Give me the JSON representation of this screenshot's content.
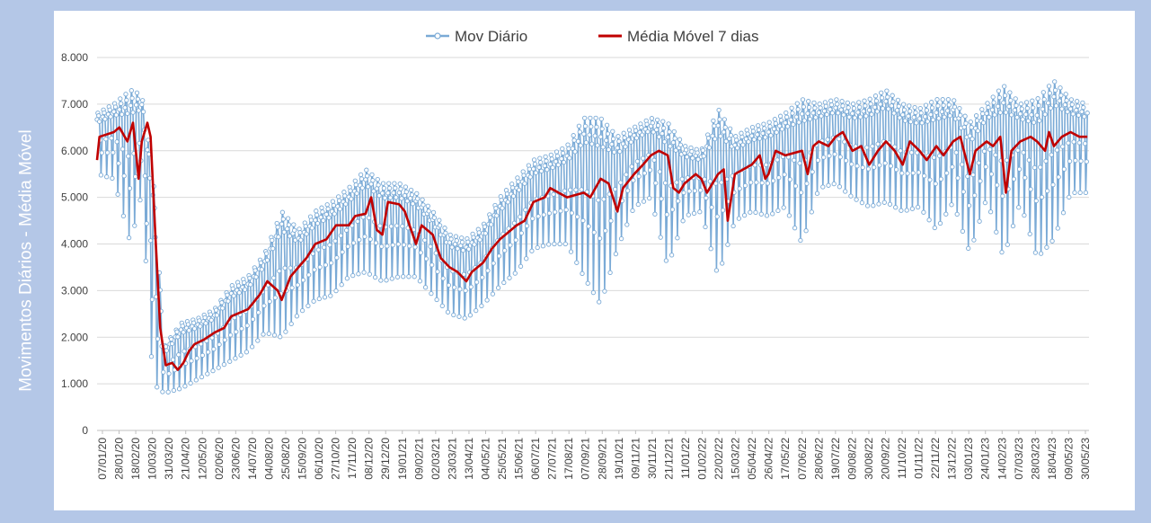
{
  "chart_data": {
    "type": "line",
    "xlabel": "",
    "ylabel": "Movimentos Diários - Média Móvel",
    "ylim": [
      0,
      8000
    ],
    "y_ticks": [
      "0",
      "1.000",
      "2.000",
      "3.000",
      "4.000",
      "5.000",
      "6.000",
      "7.000",
      "8.000"
    ],
    "y_tick_values": [
      0,
      1000,
      2000,
      3000,
      4000,
      5000,
      6000,
      7000,
      8000
    ],
    "x_range": [
      "2020-01-07",
      "2023-06-01"
    ],
    "x_ticks": [
      "07/01/20",
      "28/01/20",
      "18/02/20",
      "10/03/20",
      "31/03/20",
      "21/04/20",
      "12/05/20",
      "02/06/20",
      "23/06/20",
      "14/07/20",
      "04/08/20",
      "25/08/20",
      "15/09/20",
      "06/10/20",
      "27/10/20",
      "17/11/20",
      "08/12/20",
      "29/12/20",
      "19/01/21",
      "09/02/21",
      "02/03/21",
      "23/03/21",
      "13/04/21",
      "04/05/21",
      "25/05/21",
      "15/06/21",
      "06/07/21",
      "27/07/21",
      "17/08/21",
      "07/09/21",
      "28/09/21",
      "19/10/21",
      "09/11/21",
      "30/11/21",
      "21/12/21",
      "11/01/22",
      "01/02/22",
      "22/02/22",
      "15/03/22",
      "05/04/22",
      "26/04/22",
      "17/05/22",
      "07/06/22",
      "28/06/22",
      "19/07/22",
      "09/08/22",
      "30/08/22",
      "20/09/22",
      "11/10/22",
      "01/11/22",
      "22/11/22",
      "13/12/22",
      "03/01/23",
      "24/01/23",
      "14/02/23",
      "07/03/23",
      "28/03/23",
      "18/04/23",
      "09/05/23",
      "30/05/23"
    ],
    "legend_position": "top",
    "grid": true,
    "series": [
      {
        "name": "Mov Diário",
        "color": "#7aaad6",
        "style": "line-with-markers",
        "daily_ranges": [
          {
            "x": "2020-01-07",
            "low": 5500,
            "high": 6800,
            "mean": 6300
          },
          {
            "x": "2020-01-28",
            "low": 5400,
            "high": 7000,
            "mean": 6400
          },
          {
            "x": "2020-02-18",
            "low": 4000,
            "high": 7300,
            "mean": 6300
          },
          {
            "x": "2020-03-03",
            "low": 5100,
            "high": 7200,
            "mean": 6500
          },
          {
            "x": "2020-03-17",
            "low": 1000,
            "high": 5500,
            "mean": 2800
          },
          {
            "x": "2020-03-31",
            "low": 800,
            "high": 1800,
            "mean": 1400
          },
          {
            "x": "2020-04-21",
            "low": 900,
            "high": 2300,
            "mean": 1700
          },
          {
            "x": "2020-05-12",
            "low": 1100,
            "high": 2400,
            "mean": 1900
          },
          {
            "x": "2020-06-02",
            "low": 1300,
            "high": 2600,
            "mean": 2100
          },
          {
            "x": "2020-06-23",
            "low": 1500,
            "high": 3100,
            "mean": 2400
          },
          {
            "x": "2020-07-14",
            "low": 1700,
            "high": 3300,
            "mean": 2600
          },
          {
            "x": "2020-08-04",
            "low": 2100,
            "high": 3800,
            "mean": 3100
          },
          {
            "x": "2020-08-25",
            "low": 2000,
            "high": 4700,
            "mean": 3200
          },
          {
            "x": "2020-09-15",
            "low": 2500,
            "high": 4300,
            "mean": 3600
          },
          {
            "x": "2020-10-06",
            "low": 2800,
            "high": 4700,
            "mean": 4000
          },
          {
            "x": "2020-10-27",
            "low": 2900,
            "high": 4900,
            "mean": 4200
          },
          {
            "x": "2020-11-17",
            "low": 3300,
            "high": 5200,
            "mean": 4500
          },
          {
            "x": "2020-12-08",
            "low": 3400,
            "high": 5600,
            "mean": 4700
          },
          {
            "x": "2020-12-29",
            "low": 3200,
            "high": 5300,
            "mean": 4600
          },
          {
            "x": "2021-01-19",
            "low": 3300,
            "high": 5300,
            "mean": 4600
          },
          {
            "x": "2021-02-09",
            "low": 3300,
            "high": 5100,
            "mean": 4400
          },
          {
            "x": "2021-03-02",
            "low": 2900,
            "high": 4700,
            "mean": 4000
          },
          {
            "x": "2021-03-23",
            "low": 2500,
            "high": 4200,
            "mean": 3500
          },
          {
            "x": "2021-04-13",
            "low": 2400,
            "high": 4100,
            "mean": 3300
          },
          {
            "x": "2021-05-04",
            "low": 2700,
            "high": 4400,
            "mean": 3600
          },
          {
            "x": "2021-05-25",
            "low": 3100,
            "high": 5000,
            "mean": 4100
          },
          {
            "x": "2021-06-15",
            "low": 3400,
            "high": 5400,
            "mean": 4500
          },
          {
            "x": "2021-07-06",
            "low": 3900,
            "high": 5800,
            "mean": 4900
          },
          {
            "x": "2021-07-27",
            "low": 4000,
            "high": 5900,
            "mean": 5000
          },
          {
            "x": "2021-08-17",
            "low": 4000,
            "high": 6100,
            "mean": 5000
          },
          {
            "x": "2021-09-07",
            "low": 3300,
            "high": 6700,
            "mean": 5100
          },
          {
            "x": "2021-09-28",
            "low": 2700,
            "high": 6700,
            "mean": 5300
          },
          {
            "x": "2021-10-19",
            "low": 3900,
            "high": 6300,
            "mean": 5200
          },
          {
            "x": "2021-11-09",
            "low": 4800,
            "high": 6500,
            "mean": 5500
          },
          {
            "x": "2021-11-30",
            "low": 5000,
            "high": 6700,
            "mean": 5900
          },
          {
            "x": "2021-12-21",
            "low": 3500,
            "high": 6600,
            "mean": 5600
          },
          {
            "x": "2022-01-11",
            "low": 4600,
            "high": 6100,
            "mean": 5300
          },
          {
            "x": "2022-02-01",
            "low": 4700,
            "high": 6000,
            "mean": 5400
          },
          {
            "x": "2022-02-22",
            "low": 3300,
            "high": 6900,
            "mean": 5300
          },
          {
            "x": "2022-03-15",
            "low": 4500,
            "high": 6300,
            "mean": 5500
          },
          {
            "x": "2022-04-05",
            "low": 4700,
            "high": 6500,
            "mean": 5700
          },
          {
            "x": "2022-04-26",
            "low": 4600,
            "high": 6600,
            "mean": 5800
          },
          {
            "x": "2022-05-17",
            "low": 4800,
            "high": 6800,
            "mean": 5900
          },
          {
            "x": "2022-06-07",
            "low": 4000,
            "high": 7100,
            "mean": 5800
          },
          {
            "x": "2022-06-28",
            "low": 5200,
            "high": 7000,
            "mean": 6200
          },
          {
            "x": "2022-07-19",
            "low": 5300,
            "high": 7100,
            "mean": 6300
          },
          {
            "x": "2022-08-09",
            "low": 5000,
            "high": 7000,
            "mean": 6100
          },
          {
            "x": "2022-08-30",
            "low": 4800,
            "high": 7100,
            "mean": 6000
          },
          {
            "x": "2022-09-20",
            "low": 4900,
            "high": 7300,
            "mean": 6100
          },
          {
            "x": "2022-10-11",
            "low": 4700,
            "high": 7000,
            "mean": 6000
          },
          {
            "x": "2022-11-01",
            "low": 4800,
            "high": 6900,
            "mean": 6000
          },
          {
            "x": "2022-11-22",
            "low": 4300,
            "high": 7100,
            "mean": 6000
          },
          {
            "x": "2022-12-13",
            "low": 4900,
            "high": 7100,
            "mean": 6100
          },
          {
            "x": "2023-01-03",
            "low": 3800,
            "high": 6600,
            "mean": 5700
          },
          {
            "x": "2023-01-24",
            "low": 5000,
            "high": 7000,
            "mean": 6100
          },
          {
            "x": "2023-02-14",
            "low": 3700,
            "high": 7400,
            "mean": 6000
          },
          {
            "x": "2023-03-07",
            "low": 4900,
            "high": 7000,
            "mean": 6100
          },
          {
            "x": "2023-03-28",
            "low": 3700,
            "high": 7100,
            "mean": 6200
          },
          {
            "x": "2023-04-18",
            "low": 4100,
            "high": 7500,
            "mean": 6300
          },
          {
            "x": "2023-05-09",
            "low": 5100,
            "high": 7100,
            "mean": 6300
          },
          {
            "x": "2023-05-30",
            "low": 5100,
            "high": 7000,
            "mean": 6200
          }
        ]
      },
      {
        "name": "Média Móvel 7 dias",
        "color": "#c00000",
        "style": "line",
        "points": [
          {
            "x": "2020-01-07",
            "y": 5800
          },
          {
            "x": "2020-01-10",
            "y": 6300
          },
          {
            "x": "2020-01-28",
            "y": 6400
          },
          {
            "x": "2020-02-04",
            "y": 6500
          },
          {
            "x": "2020-02-14",
            "y": 6200
          },
          {
            "x": "2020-02-21",
            "y": 6600
          },
          {
            "x": "2020-02-28",
            "y": 5400
          },
          {
            "x": "2020-03-03",
            "y": 6200
          },
          {
            "x": "2020-03-10",
            "y": 6600
          },
          {
            "x": "2020-03-14",
            "y": 6300
          },
          {
            "x": "2020-03-20",
            "y": 4200
          },
          {
            "x": "2020-03-26",
            "y": 2200
          },
          {
            "x": "2020-04-02",
            "y": 1400
          },
          {
            "x": "2020-04-10",
            "y": 1450
          },
          {
            "x": "2020-04-17",
            "y": 1300
          },
          {
            "x": "2020-04-24",
            "y": 1450
          },
          {
            "x": "2020-05-01",
            "y": 1700
          },
          {
            "x": "2020-05-08",
            "y": 1850
          },
          {
            "x": "2020-05-20",
            "y": 1950
          },
          {
            "x": "2020-06-02",
            "y": 2100
          },
          {
            "x": "2020-06-14",
            "y": 2200
          },
          {
            "x": "2020-06-23",
            "y": 2450
          },
          {
            "x": "2020-07-14",
            "y": 2600
          },
          {
            "x": "2020-07-28",
            "y": 2900
          },
          {
            "x": "2020-08-07",
            "y": 3200
          },
          {
            "x": "2020-08-20",
            "y": 3000
          },
          {
            "x": "2020-08-25",
            "y": 2800
          },
          {
            "x": "2020-09-05",
            "y": 3300
          },
          {
            "x": "2020-09-15",
            "y": 3500
          },
          {
            "x": "2020-09-25",
            "y": 3700
          },
          {
            "x": "2020-10-06",
            "y": 4000
          },
          {
            "x": "2020-10-20",
            "y": 4100
          },
          {
            "x": "2020-11-01",
            "y": 4400
          },
          {
            "x": "2020-11-17",
            "y": 4400
          },
          {
            "x": "2020-11-25",
            "y": 4600
          },
          {
            "x": "2020-12-08",
            "y": 4650
          },
          {
            "x": "2020-12-15",
            "y": 5000
          },
          {
            "x": "2020-12-22",
            "y": 4300
          },
          {
            "x": "2020-12-29",
            "y": 4200
          },
          {
            "x": "2021-01-05",
            "y": 4900
          },
          {
            "x": "2021-01-19",
            "y": 4850
          },
          {
            "x": "2021-01-26",
            "y": 4700
          },
          {
            "x": "2021-02-02",
            "y": 4350
          },
          {
            "x": "2021-02-09",
            "y": 4000
          },
          {
            "x": "2021-02-16",
            "y": 4400
          },
          {
            "x": "2021-03-02",
            "y": 4200
          },
          {
            "x": "2021-03-12",
            "y": 3700
          },
          {
            "x": "2021-03-23",
            "y": 3500
          },
          {
            "x": "2021-04-02",
            "y": 3400
          },
          {
            "x": "2021-04-13",
            "y": 3200
          },
          {
            "x": "2021-04-20",
            "y": 3400
          },
          {
            "x": "2021-05-04",
            "y": 3600
          },
          {
            "x": "2021-05-15",
            "y": 3900
          },
          {
            "x": "2021-05-25",
            "y": 4100
          },
          {
            "x": "2021-06-15",
            "y": 4400
          },
          {
            "x": "2021-06-25",
            "y": 4500
          },
          {
            "x": "2021-07-06",
            "y": 4900
          },
          {
            "x": "2021-07-20",
            "y": 5000
          },
          {
            "x": "2021-07-27",
            "y": 5200
          },
          {
            "x": "2021-08-17",
            "y": 5000
          },
          {
            "x": "2021-09-07",
            "y": 5100
          },
          {
            "x": "2021-09-15",
            "y": 5000
          },
          {
            "x": "2021-09-28",
            "y": 5400
          },
          {
            "x": "2021-10-08",
            "y": 5300
          },
          {
            "x": "2021-10-19",
            "y": 4700
          },
          {
            "x": "2021-10-26",
            "y": 5200
          },
          {
            "x": "2021-11-09",
            "y": 5500
          },
          {
            "x": "2021-11-20",
            "y": 5700
          },
          {
            "x": "2021-11-30",
            "y": 5900
          },
          {
            "x": "2021-12-10",
            "y": 6000
          },
          {
            "x": "2021-12-21",
            "y": 5900
          },
          {
            "x": "2021-12-28",
            "y": 5200
          },
          {
            "x": "2022-01-04",
            "y": 5100
          },
          {
            "x": "2022-01-11",
            "y": 5300
          },
          {
            "x": "2022-01-25",
            "y": 5500
          },
          {
            "x": "2022-02-01",
            "y": 5400
          },
          {
            "x": "2022-02-08",
            "y": 5100
          },
          {
            "x": "2022-02-22",
            "y": 5500
          },
          {
            "x": "2022-03-01",
            "y": 5600
          },
          {
            "x": "2022-03-06",
            "y": 4500
          },
          {
            "x": "2022-03-15",
            "y": 5500
          },
          {
            "x": "2022-04-05",
            "y": 5700
          },
          {
            "x": "2022-04-15",
            "y": 5900
          },
          {
            "x": "2022-04-22",
            "y": 5400
          },
          {
            "x": "2022-04-26",
            "y": 5500
          },
          {
            "x": "2022-05-05",
            "y": 6000
          },
          {
            "x": "2022-05-17",
            "y": 5900
          },
          {
            "x": "2022-06-07",
            "y": 6000
          },
          {
            "x": "2022-06-14",
            "y": 5500
          },
          {
            "x": "2022-06-21",
            "y": 6100
          },
          {
            "x": "2022-06-28",
            "y": 6200
          },
          {
            "x": "2022-07-10",
            "y": 6100
          },
          {
            "x": "2022-07-19",
            "y": 6300
          },
          {
            "x": "2022-07-28",
            "y": 6400
          },
          {
            "x": "2022-08-09",
            "y": 6000
          },
          {
            "x": "2022-08-20",
            "y": 6100
          },
          {
            "x": "2022-08-30",
            "y": 5700
          },
          {
            "x": "2022-09-10",
            "y": 6000
          },
          {
            "x": "2022-09-20",
            "y": 6200
          },
          {
            "x": "2022-10-01",
            "y": 6000
          },
          {
            "x": "2022-10-11",
            "y": 5700
          },
          {
            "x": "2022-10-20",
            "y": 6200
          },
          {
            "x": "2022-11-01",
            "y": 6000
          },
          {
            "x": "2022-11-10",
            "y": 5800
          },
          {
            "x": "2022-11-22",
            "y": 6100
          },
          {
            "x": "2022-12-01",
            "y": 5900
          },
          {
            "x": "2022-12-13",
            "y": 6200
          },
          {
            "x": "2022-12-22",
            "y": 6300
          },
          {
            "x": "2023-01-03",
            "y": 5500
          },
          {
            "x": "2023-01-10",
            "y": 6000
          },
          {
            "x": "2023-01-24",
            "y": 6200
          },
          {
            "x": "2023-02-01",
            "y": 6100
          },
          {
            "x": "2023-02-10",
            "y": 6300
          },
          {
            "x": "2023-02-17",
            "y": 5100
          },
          {
            "x": "2023-02-24",
            "y": 6000
          },
          {
            "x": "2023-03-07",
            "y": 6200
          },
          {
            "x": "2023-03-20",
            "y": 6300
          },
          {
            "x": "2023-03-28",
            "y": 6200
          },
          {
            "x": "2023-04-07",
            "y": 6000
          },
          {
            "x": "2023-04-12",
            "y": 6400
          },
          {
            "x": "2023-04-18",
            "y": 6100
          },
          {
            "x": "2023-04-28",
            "y": 6300
          },
          {
            "x": "2023-05-09",
            "y": 6400
          },
          {
            "x": "2023-05-20",
            "y": 6300
          },
          {
            "x": "2023-05-30",
            "y": 6300
          }
        ]
      }
    ]
  }
}
